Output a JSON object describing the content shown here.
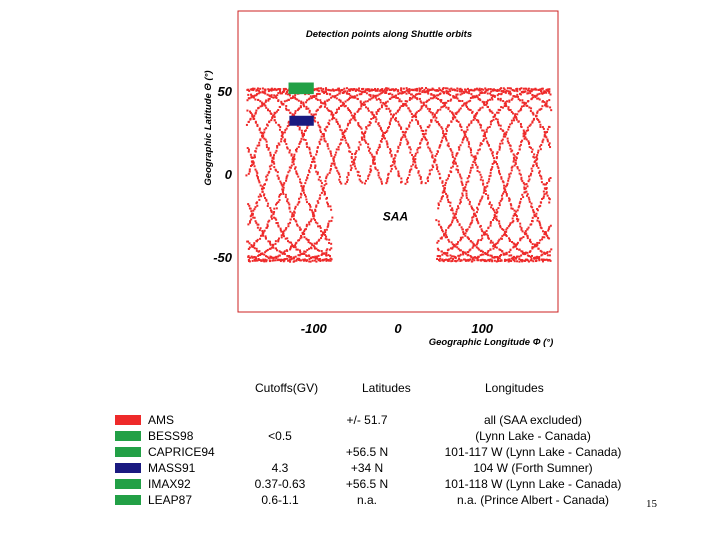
{
  "colors": {
    "trace": "#ee2a2a",
    "frame": "#cc2222",
    "bess": "#22a046",
    "mass": "#1a1a80",
    "ams": "#ee2a2a"
  },
  "chart_data": {
    "type": "scatter",
    "title": "Detection points along Shuttle orbits",
    "xlabel": "Geographic Longitude Φ (°)",
    "ylabel": "Geographic Latitude Θ (°)",
    "xlim": [
      -190,
      190
    ],
    "ylim": [
      -83,
      98
    ],
    "xticks": [
      {
        "value": -100,
        "label": "-100"
      },
      {
        "value": 0,
        "label": "0"
      },
      {
        "value": 100,
        "label": "100"
      }
    ],
    "yticks": [
      {
        "value": 50,
        "label": "50"
      },
      {
        "value": 0,
        "label": "0"
      },
      {
        "value": -50,
        "label": "-50"
      }
    ],
    "orbit": {
      "inclination": 51.7,
      "points_per_track": 260,
      "track_phases": [
        -180,
        -156,
        -132,
        -108,
        -84,
        -60,
        -36,
        -12,
        12,
        36,
        60,
        84,
        108,
        132,
        156
      ]
    },
    "saa_exclusion": {
      "lon": [
        -80,
        45
      ],
      "lat": [
        -60,
        -5
      ]
    },
    "regions": [
      {
        "name": "BESS98",
        "lon": [
          -130,
          -100
        ],
        "lat": [
          48,
          55
        ],
        "color_key": "bess"
      },
      {
        "name": "MASS91",
        "lon": [
          -129,
          -100
        ],
        "lat": [
          29,
          35
        ],
        "color_key": "mass"
      }
    ],
    "annotations": [
      {
        "text": "SAA",
        "lon": -3,
        "lat": -28
      }
    ],
    "grid": false
  },
  "table": {
    "headers": {
      "cutoffs": "Cutoffs(GV)",
      "latitudes": "Latitudes",
      "longitudes": "Longitudes"
    },
    "rows": [
      {
        "name": "AMS",
        "color_key": "ams",
        "cutoff": "",
        "latitude": "+/- 51.7",
        "longitude": "all (SAA excluded)"
      },
      {
        "name": "BESS98",
        "color_key": "bess",
        "cutoff": "<0.5",
        "latitude": "",
        "longitude": "(Lynn Lake - Canada)"
      },
      {
        "name": "CAPRICE94",
        "color_key": "bess",
        "cutoff": "",
        "latitude": "+56.5 N",
        "longitude": "101-117 W  (Lynn Lake - Canada)"
      },
      {
        "name": "MASS91",
        "color_key": "mass",
        "cutoff": "4.3",
        "latitude": "+34   N",
        "longitude": "104 W     (Forth Sumner)"
      },
      {
        "name": "IMAX92",
        "color_key": "bess",
        "cutoff": "0.37-0.63",
        "latitude": "+56.5 N",
        "longitude": "101-118 W  (Lynn Lake - Canada)"
      },
      {
        "name": "LEAP87",
        "color_key": "bess",
        "cutoff": "0.6-1.1",
        "latitude": "n.a.",
        "longitude": "n.a.      (Prince Albert - Canada)"
      }
    ]
  },
  "page_number": "15"
}
